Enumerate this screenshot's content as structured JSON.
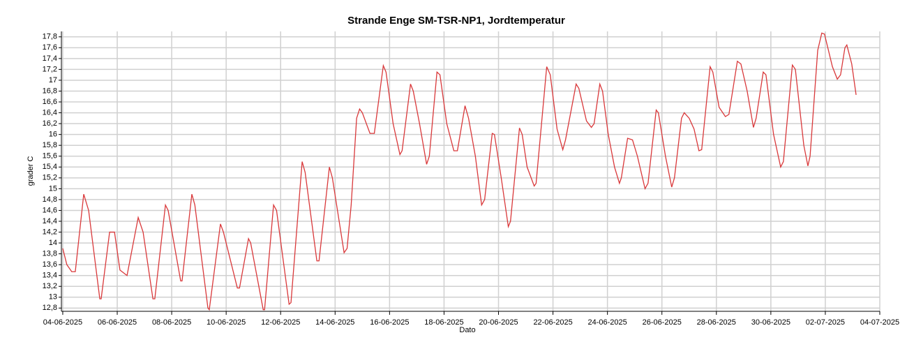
{
  "chart_data": {
    "type": "line",
    "title": "Strande Enge SM-TSR-NP1, Jordtemperatur",
    "x_label": "Dato",
    "y_label": "grader C",
    "grid": true,
    "xlim": [
      -0.05,
      30
    ],
    "xticks": [
      {
        "value": 0,
        "label": "04-06-2025"
      },
      {
        "value": 2,
        "label": "06-06-2025"
      },
      {
        "value": 4,
        "label": "08-06-2025"
      },
      {
        "value": 6,
        "label": "10-06-2025"
      },
      {
        "value": 8,
        "label": "12-06-2025"
      },
      {
        "value": 10,
        "label": "14-06-2025"
      },
      {
        "value": 12,
        "label": "16-06-2025"
      },
      {
        "value": 14,
        "label": "18-06-2025"
      },
      {
        "value": 16,
        "label": "20-06-2025"
      },
      {
        "value": 18,
        "label": "22-06-2025"
      },
      {
        "value": 20,
        "label": "24-06-2025"
      },
      {
        "value": 22,
        "label": "26-06-2025"
      },
      {
        "value": 24,
        "label": "28-06-2025"
      },
      {
        "value": 26,
        "label": "30-06-2025"
      },
      {
        "value": 28,
        "label": "02-07-2025"
      },
      {
        "value": 30,
        "label": "04-07-2025"
      }
    ],
    "ylim": [
      12.74,
      17.9
    ],
    "yticks": [
      {
        "value": 12.8,
        "label": "12,8"
      },
      {
        "value": 13,
        "label": "13"
      },
      {
        "value": 13.2,
        "label": "13,2"
      },
      {
        "value": 13.4,
        "label": "13,4"
      },
      {
        "value": 13.6,
        "label": "13,6"
      },
      {
        "value": 13.8,
        "label": "13,8"
      },
      {
        "value": 14,
        "label": "14"
      },
      {
        "value": 14.2,
        "label": "14,2"
      },
      {
        "value": 14.4,
        "label": "14,4"
      },
      {
        "value": 14.6,
        "label": "14,6"
      },
      {
        "value": 14.8,
        "label": "14,8"
      },
      {
        "value": 15,
        "label": "15"
      },
      {
        "value": 15.2,
        "label": "15,2"
      },
      {
        "value": 15.4,
        "label": "15,4"
      },
      {
        "value": 15.6,
        "label": "15,6"
      },
      {
        "value": 15.8,
        "label": "15,8"
      },
      {
        "value": 16,
        "label": "16"
      },
      {
        "value": 16.2,
        "label": "16,2"
      },
      {
        "value": 16.4,
        "label": "16,4"
      },
      {
        "value": 16.6,
        "label": "16,6"
      },
      {
        "value": 16.8,
        "label": "16,8"
      },
      {
        "value": 17,
        "label": "17"
      },
      {
        "value": 17.2,
        "label": "17,2"
      },
      {
        "value": 17.4,
        "label": "17,4"
      },
      {
        "value": 17.6,
        "label": "17,6"
      },
      {
        "value": 17.8,
        "label": "17,8"
      }
    ],
    "series": [
      {
        "color": "#d9383a",
        "x": [
          0,
          0.15,
          0.33,
          0.46,
          0.77,
          0.95,
          1.36,
          1.41,
          1.72,
          1.9,
          2.1,
          2.36,
          2.77,
          2.95,
          3.31,
          3.38,
          3.77,
          3.87,
          4.33,
          4.38,
          4.74,
          4.85,
          5.33,
          5.38,
          5.79,
          5.9,
          6.41,
          6.49,
          6.82,
          6.9,
          7.36,
          7.41,
          7.74,
          7.85,
          8.31,
          8.38,
          8.79,
          8.9,
          9.33,
          9.41,
          9.79,
          9.9,
          10.33,
          10.44,
          10.59,
          10.79,
          10.9,
          11.0,
          11.28,
          11.44,
          11.77,
          11.87,
          12.13,
          12.38,
          12.46,
          12.77,
          12.87,
          13.1,
          13.36,
          13.46,
          13.74,
          13.85,
          14.1,
          14.36,
          14.49,
          14.77,
          14.9,
          15.15,
          15.38,
          15.49,
          15.77,
          15.85,
          16.1,
          16.36,
          16.44,
          16.77,
          16.87,
          17.05,
          17.31,
          17.38,
          17.77,
          17.9,
          18.15,
          18.36,
          18.46,
          18.85,
          18.95,
          19.23,
          19.41,
          19.51,
          19.72,
          19.82,
          20.03,
          20.26,
          20.44,
          20.51,
          20.74,
          20.92,
          21.1,
          21.38,
          21.49,
          21.79,
          21.87,
          22.13,
          22.36,
          22.46,
          22.72,
          22.82,
          23.0,
          23.18,
          23.36,
          23.46,
          23.77,
          23.87,
          24.1,
          24.33,
          24.46,
          24.77,
          24.9,
          25.13,
          25.36,
          25.46,
          25.72,
          25.82,
          26.1,
          26.36,
          26.46,
          26.79,
          26.9,
          27.21,
          27.36,
          27.44,
          27.72,
          27.87,
          27.97,
          28.26,
          28.44,
          28.56,
          28.72,
          28.79,
          28.97,
          29.13
        ],
        "values": [
          13.9,
          13.6,
          13.47,
          13.47,
          14.9,
          14.6,
          12.97,
          12.97,
          14.2,
          14.2,
          13.5,
          13.4,
          14.47,
          14.2,
          12.97,
          12.97,
          14.7,
          14.6,
          13.3,
          13.3,
          14.9,
          14.7,
          12.8,
          12.77,
          14.35,
          14.2,
          13.17,
          13.17,
          14.08,
          14.0,
          12.77,
          12.77,
          14.7,
          14.6,
          12.87,
          12.9,
          15.5,
          15.3,
          13.67,
          13.67,
          15.4,
          15.2,
          13.82,
          13.9,
          14.7,
          16.3,
          16.47,
          16.4,
          16.02,
          16.02,
          17.27,
          17.15,
          16.2,
          15.63,
          15.7,
          16.93,
          16.8,
          16.2,
          15.45,
          15.6,
          17.15,
          17.1,
          16.2,
          15.7,
          15.7,
          16.53,
          16.3,
          15.6,
          14.7,
          14.8,
          16.02,
          16.0,
          15.2,
          14.3,
          14.4,
          16.12,
          16.0,
          15.4,
          15.05,
          15.1,
          17.25,
          17.1,
          16.1,
          15.72,
          15.9,
          16.93,
          16.85,
          16.25,
          16.13,
          16.2,
          16.93,
          16.8,
          16.0,
          15.4,
          15.1,
          15.2,
          15.93,
          15.9,
          15.6,
          15.0,
          15.1,
          16.45,
          16.4,
          15.6,
          15.03,
          15.2,
          16.3,
          16.4,
          16.3,
          16.1,
          15.7,
          15.72,
          17.25,
          17.15,
          16.5,
          16.33,
          16.37,
          17.35,
          17.3,
          16.8,
          16.13,
          16.3,
          17.15,
          17.1,
          16.0,
          15.4,
          15.5,
          17.28,
          17.2,
          15.8,
          15.42,
          15.6,
          17.55,
          17.87,
          17.85,
          17.25,
          17.02,
          17.1,
          17.6,
          17.65,
          17.3,
          16.73
        ]
      }
    ]
  }
}
